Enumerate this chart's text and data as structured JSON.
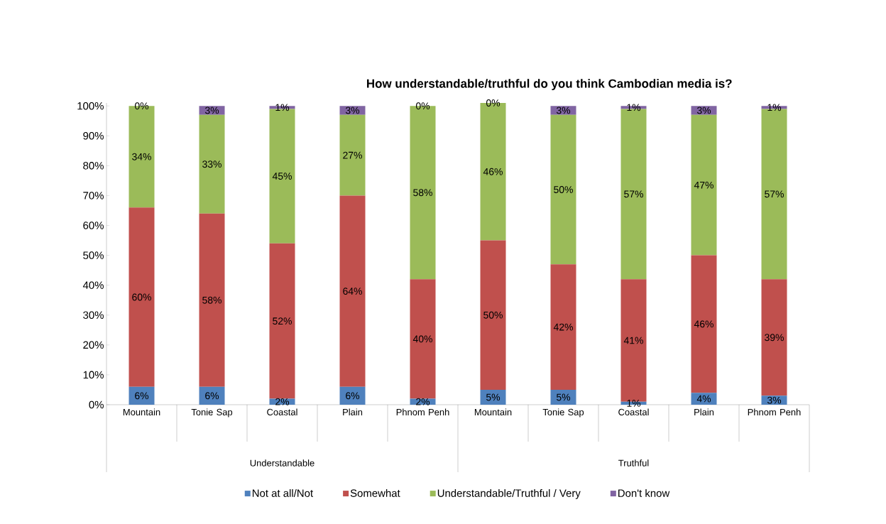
{
  "chart_data": {
    "type": "bar",
    "stacked": true,
    "title": "How understandable/truthful do you think Cambodian media is?",
    "categories": [
      "Mountain",
      "Tonie Sap",
      "Coastal",
      "Plain",
      "Phnom Penh",
      "Mountain",
      "Tonie Sap",
      "Coastal",
      "Plain",
      "Phnom Penh"
    ],
    "annotations": [
      "Understandable",
      "Truthful"
    ],
    "series": [
      {
        "name": "Not at all/Not",
        "color": "#4f81bd",
        "values": [
          6,
          6,
          2,
          6,
          2,
          5,
          5,
          1,
          4,
          3
        ],
        "value_labels": [
          "6%",
          "6%",
          "2%",
          "6%",
          "2%",
          "5%",
          "5%",
          "1%",
          "4%",
          "3%"
        ]
      },
      {
        "name": "Somewhat",
        "color": "#c0504d",
        "values": [
          60,
          58,
          52,
          64,
          40,
          50,
          42,
          41,
          46,
          39
        ],
        "value_labels": [
          "60%",
          "58%",
          "52%",
          "64%",
          "40%",
          "50%",
          "42%",
          "41%",
          "46%",
          "39%"
        ]
      },
      {
        "name": "Understandable/Truthful / Very",
        "color": "#9bbb59",
        "values": [
          34,
          33,
          45,
          27,
          58,
          46,
          50,
          57,
          47,
          57
        ],
        "value_labels": [
          "34%",
          "33%",
          "45%",
          "27%",
          "58%",
          "46%",
          "50%",
          "57%",
          "47%",
          "57%"
        ]
      },
      {
        "name": "Don't know",
        "color": "#8064a2",
        "values": [
          0,
          3,
          1,
          3,
          0,
          0,
          3,
          1,
          3,
          1
        ],
        "value_labels": [
          "0%",
          "3%",
          "1%",
          "3%",
          "0%",
          "0%",
          "3%",
          "1%",
          "3%",
          "1%"
        ]
      }
    ],
    "ylim": [
      0,
      101
    ],
    "yticks": [
      {
        "value": 0,
        "label": "0%"
      },
      {
        "value": 10,
        "label": "10%"
      },
      {
        "value": 20,
        "label": "20%"
      },
      {
        "value": 30,
        "label": "30%"
      },
      {
        "value": 40,
        "label": "40%"
      },
      {
        "value": 50,
        "label": "50%"
      },
      {
        "value": 60,
        "label": "60%"
      },
      {
        "value": 70,
        "label": "70%"
      },
      {
        "value": 80,
        "label": "80%"
      },
      {
        "value": 90,
        "label": "90%"
      },
      {
        "value": 100,
        "label": "100%"
      }
    ],
    "legend": "bottom"
  }
}
